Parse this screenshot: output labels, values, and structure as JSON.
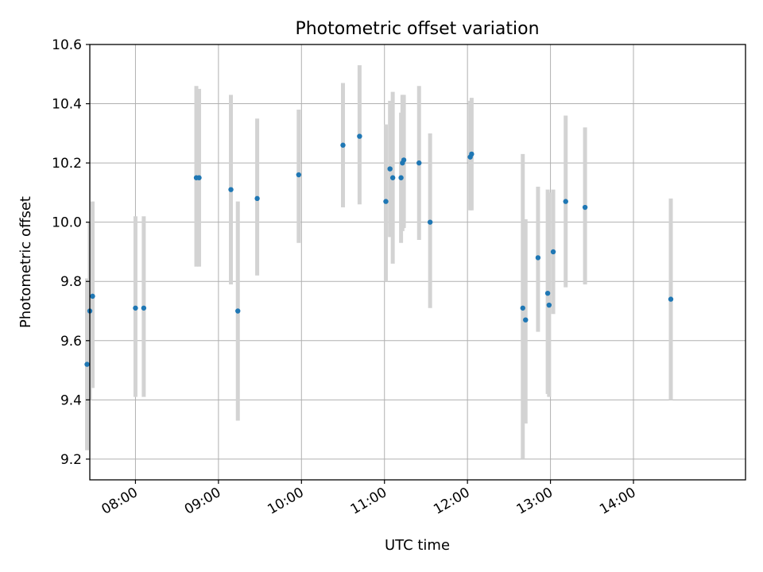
{
  "chart_data": {
    "type": "scatter",
    "title": "Photometric offset variation",
    "xlabel": "UTC time",
    "ylabel": "Photometric offset",
    "xlim": [
      "07:27",
      "15:21"
    ],
    "ylim": [
      9.13,
      10.6
    ],
    "x_ticks": [
      "08:00",
      "09:00",
      "10:00",
      "11:00",
      "12:00",
      "13:00",
      "14:00"
    ],
    "y_ticks": [
      9.2,
      9.4,
      9.6,
      9.8,
      10.0,
      10.2,
      10.4,
      10.6
    ],
    "y_tick_labels": [
      "9.2",
      "9.4",
      "9.6",
      "9.8",
      "10.0",
      "10.2",
      "10.4",
      "10.6"
    ],
    "grid": true,
    "colors": {
      "points": "#1f77b4",
      "error_bars": "#d3d3d3",
      "grid": "#b0b0b0"
    },
    "points": [
      {
        "x": "07:25",
        "y": 9.52,
        "err_low": 9.23,
        "err_high": 9.81
      },
      {
        "x": "07:27",
        "y": 9.7,
        "err_low": 9.4,
        "err_high": 10.0
      },
      {
        "x": "07:29",
        "y": 9.75,
        "err_low": 9.44,
        "err_high": 10.07
      },
      {
        "x": "08:00",
        "y": 9.71,
        "err_low": 9.41,
        "err_high": 10.02
      },
      {
        "x": "08:06",
        "y": 9.71,
        "err_low": 9.41,
        "err_high": 10.02
      },
      {
        "x": "08:44",
        "y": 10.15,
        "err_low": 9.85,
        "err_high": 10.46
      },
      {
        "x": "08:46",
        "y": 10.15,
        "err_low": 9.85,
        "err_high": 10.45
      },
      {
        "x": "09:09",
        "y": 10.11,
        "err_low": 9.79,
        "err_high": 10.43
      },
      {
        "x": "09:14",
        "y": 9.7,
        "err_low": 9.33,
        "err_high": 10.07
      },
      {
        "x": "09:28",
        "y": 10.08,
        "err_low": 9.82,
        "err_high": 10.35
      },
      {
        "x": "09:58",
        "y": 10.16,
        "err_low": 9.93,
        "err_high": 10.38
      },
      {
        "x": "10:30",
        "y": 10.26,
        "err_low": 10.05,
        "err_high": 10.47
      },
      {
        "x": "10:42",
        "y": 10.29,
        "err_low": 10.06,
        "err_high": 10.53
      },
      {
        "x": "11:01",
        "y": 10.07,
        "err_low": 9.8,
        "err_high": 10.33
      },
      {
        "x": "11:04",
        "y": 10.18,
        "err_low": 9.95,
        "err_high": 10.41
      },
      {
        "x": "11:06",
        "y": 10.15,
        "err_low": 9.86,
        "err_high": 10.44
      },
      {
        "x": "11:12",
        "y": 10.15,
        "err_low": 9.93,
        "err_high": 10.37
      },
      {
        "x": "11:13",
        "y": 10.2,
        "err_low": 9.97,
        "err_high": 10.43
      },
      {
        "x": "11:14",
        "y": 10.21,
        "err_low": 9.98,
        "err_high": 10.43
      },
      {
        "x": "11:25",
        "y": 10.2,
        "err_low": 9.94,
        "err_high": 10.46
      },
      {
        "x": "11:33",
        "y": 10.0,
        "err_low": 9.71,
        "err_high": 10.3
      },
      {
        "x": "12:02",
        "y": 10.22,
        "err_low": 10.04,
        "err_high": 10.41
      },
      {
        "x": "12:03",
        "y": 10.23,
        "err_low": 10.04,
        "err_high": 10.42
      },
      {
        "x": "12:40",
        "y": 9.71,
        "err_low": 9.2,
        "err_high": 10.23
      },
      {
        "x": "12:42",
        "y": 9.67,
        "err_low": 9.32,
        "err_high": 10.01
      },
      {
        "x": "12:51",
        "y": 9.88,
        "err_low": 9.63,
        "err_high": 10.12
      },
      {
        "x": "12:58",
        "y": 9.76,
        "err_low": 9.42,
        "err_high": 10.11
      },
      {
        "x": "12:59",
        "y": 9.72,
        "err_low": 9.41,
        "err_high": 10.1
      },
      {
        "x": "13:02",
        "y": 9.9,
        "err_low": 9.69,
        "err_high": 10.11
      },
      {
        "x": "13:11",
        "y": 10.07,
        "err_low": 9.78,
        "err_high": 10.36
      },
      {
        "x": "13:25",
        "y": 10.05,
        "err_low": 9.79,
        "err_high": 10.32
      },
      {
        "x": "14:27",
        "y": 9.74,
        "err_low": 9.4,
        "err_high": 10.08
      }
    ]
  }
}
